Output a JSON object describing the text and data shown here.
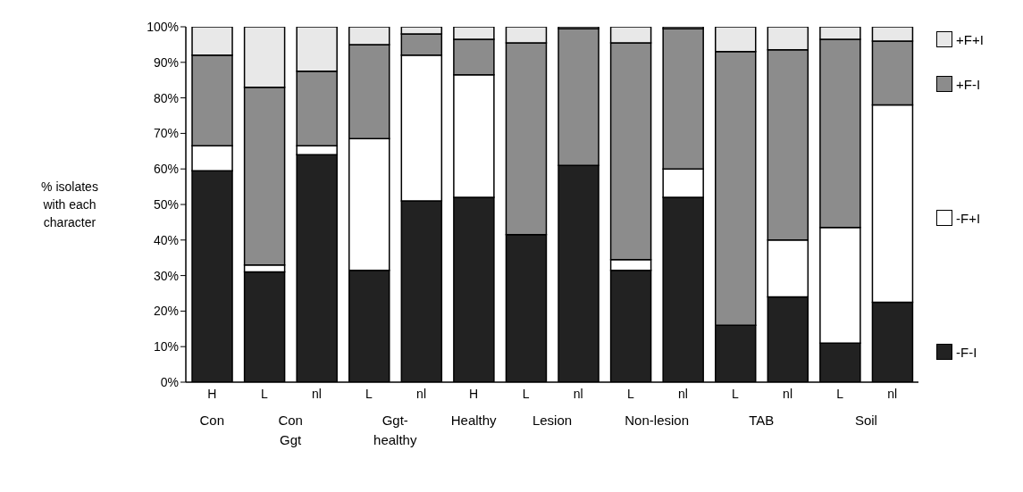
{
  "chart_data": {
    "type": "bar",
    "stacked": true,
    "ylabel": "% isolates\nwith each\ncharacter",
    "categories": [
      "H",
      "L",
      "nl",
      "L",
      "nl",
      "H",
      "L",
      "nl",
      "L",
      "nl",
      "L",
      "nl",
      "L",
      "nl"
    ],
    "annotations": [
      "Con",
      "Con\nGgt",
      "Ggt-\nhealthy",
      "Healthy",
      "Lesion",
      "Non-lesion",
      "TAB",
      "Soil"
    ],
    "series": [
      {
        "name": "-F-I",
        "color": "#222222",
        "values": [
          59.5,
          31,
          64,
          31.5,
          51,
          52,
          41.5,
          61,
          31.5,
          52,
          16,
          24,
          11,
          22.5
        ]
      },
      {
        "name": "-F+I",
        "color": "#ffffff",
        "values": [
          7,
          2,
          2.5,
          37,
          41,
          34.5,
          0,
          0,
          3,
          8,
          0,
          16,
          32.5,
          55.5
        ]
      },
      {
        "name": "+F-I",
        "color": "#8c8c8c",
        "values": [
          25.5,
          50,
          21,
          26.5,
          6,
          10,
          54,
          38.5,
          61,
          39.5,
          77,
          53.5,
          53,
          18
        ]
      },
      {
        "name": "+F+I",
        "color": "#e8e8e8",
        "values": [
          8,
          17,
          12.5,
          5,
          2,
          3.5,
          4.5,
          0.5,
          4.5,
          0.5,
          7,
          6.5,
          3.5,
          4
        ]
      }
    ],
    "ylim": [
      0,
      100
    ],
    "yticks": [
      {
        "value": 0,
        "label": "0%"
      },
      {
        "value": 10,
        "label": "10%"
      },
      {
        "value": 20,
        "label": "20%"
      },
      {
        "value": 30,
        "label": "30%"
      },
      {
        "value": 40,
        "label": "40%"
      },
      {
        "value": 50,
        "label": "50%"
      },
      {
        "value": 60,
        "label": "60%"
      },
      {
        "value": 70,
        "label": "70%"
      },
      {
        "value": 80,
        "label": "80%"
      },
      {
        "value": 90,
        "label": "90%"
      },
      {
        "value": 100,
        "label": "100%"
      }
    ],
    "grid": false,
    "legend": "right"
  }
}
